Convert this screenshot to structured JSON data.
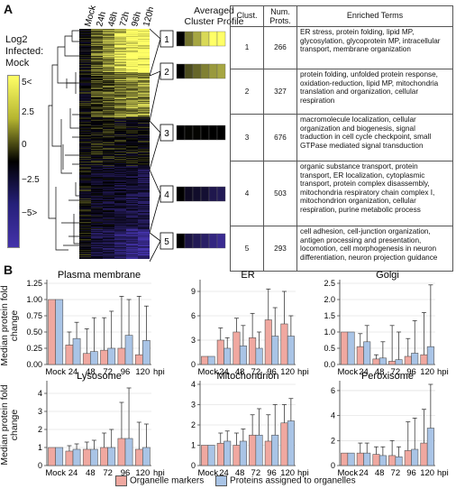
{
  "panel_a": {
    "letter": "A",
    "scale_label_lines": [
      "Log2",
      "Infected:",
      "Mock"
    ],
    "scale_ticks": [
      "5<",
      "2.5",
      "0",
      "−2.5",
      "−5>"
    ],
    "columns": [
      "Mock",
      "24h",
      "48h",
      "72h",
      "96h",
      "120h"
    ],
    "profile_title_lines": [
      "Averaged",
      "Cluster Profile"
    ],
    "colors": {
      "high": "#ffff66",
      "mid": "#000000",
      "low": "#4433aa"
    },
    "table": {
      "headers": [
        "Clust.",
        "Num.\nProts.",
        "Enriched Terms"
      ],
      "rows": [
        {
          "cluster": "1",
          "count": "266",
          "terms": "ER stress, protein folding, lipid MP, glycosylation, glycoprotein MP, intracellular transport, membrane organization"
        },
        {
          "cluster": "2",
          "count": "327",
          "terms": "protein folding, unfolded protein response, oxidation-reduction, lipid MP, mitochondria translation and organization, cellular respiration"
        },
        {
          "cluster": "3",
          "count": "676",
          "terms": "macromolecule localization, cellular organization and biogenesis, signal traduction in cell cycle checkpoint, small GTPase mediated signal transduction"
        },
        {
          "cluster": "4",
          "count": "503",
          "terms": "organic substance transport, protein transport, ER localization, cytoplasmic transport, protein complex disassembly, mitochondria respiratory chain complex I, mitochondrion organization, cellular respiration, purine metabolic process"
        },
        {
          "cluster": "5",
          "count": "293",
          "terms": "cell adhesion, cell-junction organization, antigen processing and presentation, locomotion, cell morphogenesis in neuron differentiation, neuron projection guidance"
        }
      ]
    }
  },
  "panel_b": {
    "letter": "B",
    "ylabel": "Median protein fold change",
    "legend": {
      "markers": "Organelle markers",
      "assigned": "Proteins assigned to organelles"
    },
    "colors": {
      "markers": "#f0a8a0",
      "assigned": "#a9c4e6",
      "stroke": "#555555"
    }
  },
  "chart_data": [
    {
      "type": "bar",
      "title": "Plasma membrane",
      "categories": [
        "Mock",
        "24",
        "48",
        "72",
        "96",
        "120"
      ],
      "x_unit": "hpi",
      "ylim": [
        0,
        1.25
      ],
      "yticks": [
        "0.00",
        "0.25",
        "0.50",
        "0.75",
        "1.00",
        "1.25"
      ],
      "series": [
        {
          "name": "Organelle markers",
          "values": [
            1.0,
            0.3,
            0.17,
            0.22,
            0.25,
            0.15
          ],
          "err_high": [
            1.0,
            0.5,
            0.55,
            0.72,
            1.05,
            1.05
          ]
        },
        {
          "name": "Proteins assigned to organelles",
          "values": [
            1.0,
            0.4,
            0.2,
            0.25,
            0.45,
            0.37
          ],
          "err_high": [
            1.0,
            0.65,
            0.72,
            0.82,
            1.0,
            0.9
          ]
        }
      ]
    },
    {
      "type": "bar",
      "title": "ER",
      "categories": [
        "Mock",
        "24",
        "48",
        "72",
        "96",
        "120"
      ],
      "x_unit": "hpi",
      "ylim": [
        0,
        10
      ],
      "yticks": [
        "0",
        "3",
        "6",
        "9"
      ],
      "series": [
        {
          "name": "Organelle markers",
          "values": [
            1.0,
            3.0,
            4.0,
            3.3,
            5.5,
            5.0
          ],
          "err_high": [
            1.0,
            4.5,
            5.7,
            6.3,
            9.3,
            9.0
          ]
        },
        {
          "name": "Proteins assigned to organelles",
          "values": [
            1.0,
            2.0,
            2.3,
            2.0,
            3.5,
            3.5
          ],
          "err_high": [
            1.0,
            3.3,
            4.8,
            4.0,
            7.0,
            6.0
          ]
        }
      ]
    },
    {
      "type": "bar",
      "title": "Golgi",
      "categories": [
        "Mock",
        "24",
        "48",
        "72",
        "96",
        "120"
      ],
      "x_unit": "hpi",
      "ylim": [
        0,
        2.5
      ],
      "yticks": [
        "0.0",
        "0.5",
        "1.0",
        "1.5",
        "2.0",
        "2.5"
      ],
      "series": [
        {
          "name": "Organelle markers",
          "values": [
            1.0,
            0.55,
            0.17,
            0.1,
            0.25,
            0.3
          ],
          "err_high": [
            1.0,
            0.95,
            0.3,
            1.2,
            0.8,
            1.6
          ]
        },
        {
          "name": "Proteins assigned to organelles",
          "values": [
            1.0,
            0.7,
            0.2,
            0.15,
            0.35,
            0.55
          ],
          "err_high": [
            1.0,
            1.2,
            0.7,
            1.0,
            1.35,
            2.45
          ]
        }
      ]
    },
    {
      "type": "bar",
      "title": "Lysosome",
      "categories": [
        "Mock",
        "24",
        "48",
        "72",
        "96",
        "120"
      ],
      "x_unit": "hpi",
      "ylim": [
        0,
        4.5
      ],
      "yticks": [
        "0",
        "1",
        "2",
        "3",
        "4"
      ],
      "series": [
        {
          "name": "Organelle markers",
          "values": [
            1.0,
            0.8,
            0.9,
            1.0,
            1.5,
            0.9
          ],
          "err_high": [
            1.0,
            1.1,
            1.3,
            1.8,
            3.5,
            2.4
          ]
        },
        {
          "name": "Proteins assigned to organelles",
          "values": [
            1.0,
            0.9,
            0.9,
            1.0,
            1.5,
            1.0
          ],
          "err_high": [
            1.0,
            1.2,
            1.4,
            2.0,
            4.3,
            2.3
          ]
        }
      ]
    },
    {
      "type": "bar",
      "title": "Mitochondrion",
      "categories": [
        "Mock",
        "24",
        "48",
        "72",
        "96",
        "120"
      ],
      "x_unit": "hpi",
      "ylim": [
        0,
        4
      ],
      "yticks": [
        "0",
        "1",
        "2",
        "3",
        "4"
      ],
      "series": [
        {
          "name": "Organelle markers",
          "values": [
            1.0,
            1.1,
            1.0,
            1.5,
            1.2,
            2.1
          ],
          "err_high": [
            1.0,
            1.6,
            1.6,
            2.5,
            2.5,
            3.0
          ]
        },
        {
          "name": "Proteins assigned to organelles",
          "values": [
            1.0,
            1.2,
            1.2,
            1.5,
            1.5,
            2.2
          ],
          "err_high": [
            1.0,
            1.7,
            1.8,
            2.8,
            3.0,
            3.3
          ]
        }
      ]
    },
    {
      "type": "bar",
      "title": "Peroxisome",
      "categories": [
        "Mock",
        "24",
        "48",
        "72",
        "96",
        "120"
      ],
      "x_unit": "hpi",
      "ylim": [
        0,
        6.5
      ],
      "yticks": [
        "0",
        "2",
        "4",
        "6"
      ],
      "series": [
        {
          "name": "Organelle markers",
          "values": [
            1.0,
            1.0,
            0.9,
            0.8,
            1.2,
            1.8
          ],
          "err_high": [
            1.0,
            1.8,
            1.5,
            2.0,
            3.5,
            4.5
          ]
        },
        {
          "name": "Proteins assigned to organelles",
          "values": [
            1.0,
            1.0,
            0.8,
            0.7,
            1.3,
            3.0
          ],
          "err_high": [
            1.0,
            1.8,
            1.5,
            1.5,
            3.8,
            6.5
          ]
        }
      ]
    }
  ]
}
